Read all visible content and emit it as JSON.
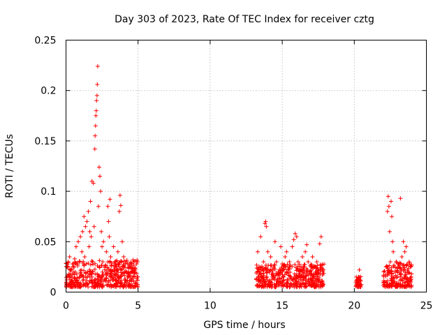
{
  "chart_data": {
    "type": "scatter",
    "title": "Day 303 of 2023, Rate Of TEC Index for receiver cztg",
    "xlabel": "GPS time / hours",
    "ylabel": "ROTI / TECUs",
    "xlim": [
      0,
      25
    ],
    "ylim": [
      0,
      0.25
    ],
    "xticks": [
      0,
      5,
      10,
      15,
      20,
      25
    ],
    "yticks": [
      0,
      0.05,
      0.1,
      0.15,
      0.2,
      0.25
    ],
    "xtick_labels": [
      "0",
      "5",
      "10",
      "15",
      "20",
      "25"
    ],
    "ytick_labels": [
      "0",
      "0.05",
      "0.1",
      "0.15",
      "0.2",
      "0.25"
    ],
    "grid": true,
    "marker": "+",
    "series": [
      {
        "color": "#ff0000",
        "points": [
          [
            0.05,
            0.012
          ],
          [
            0.1,
            0.025
          ],
          [
            0.15,
            0.03
          ],
          [
            0.2,
            0.018
          ],
          [
            0.25,
            0.035
          ],
          [
            0.3,
            0.008
          ],
          [
            0.35,
            0.022
          ],
          [
            0.4,
            0.015
          ],
          [
            0.45,
            0.028
          ],
          [
            0.5,
            0.01
          ],
          [
            0.55,
            0.02
          ],
          [
            0.6,
            0.033
          ],
          [
            0.65,
            0.012
          ],
          [
            0.7,
            0.045
          ],
          [
            0.75,
            0.018
          ],
          [
            0.8,
            0.026
          ],
          [
            0.85,
            0.05
          ],
          [
            0.9,
            0.014
          ],
          [
            0.95,
            0.03
          ],
          [
            1.0,
            0.055
          ],
          [
            1.05,
            0.022
          ],
          [
            1.1,
            0.04
          ],
          [
            1.15,
            0.06
          ],
          [
            1.2,
            0.016
          ],
          [
            1.25,
            0.075
          ],
          [
            1.3,
            0.035
          ],
          [
            1.35,
            0.065
          ],
          [
            1.4,
            0.028
          ],
          [
            1.45,
            0.07
          ],
          [
            1.5,
            0.02
          ],
          [
            1.55,
            0.08
          ],
          [
            1.6,
            0.045
          ],
          [
            1.65,
            0.06
          ],
          [
            1.7,
            0.09
          ],
          [
            1.75,
            0.055
          ],
          [
            1.8,
            0.11
          ],
          [
            1.85,
            0.03
          ],
          [
            1.9,
            0.108
          ],
          [
            1.95,
            0.065
          ],
          [
            2.0,
            0.142
          ],
          [
            2.02,
            0.155
          ],
          [
            2.05,
            0.165
          ],
          [
            2.07,
            0.175
          ],
          [
            2.1,
            0.18
          ],
          [
            2.12,
            0.19
          ],
          [
            2.15,
            0.195
          ],
          [
            2.17,
            0.206
          ],
          [
            2.2,
            0.224
          ],
          [
            2.25,
            0.085
          ],
          [
            2.3,
            0.124
          ],
          [
            2.35,
            0.115
          ],
          [
            2.4,
            0.1
          ],
          [
            2.45,
            0.06
          ],
          [
            2.5,
            0.045
          ],
          [
            2.55,
            0.03
          ],
          [
            2.6,
            0.05
          ],
          [
            2.7,
            0.025
          ],
          [
            2.8,
            0.04
          ],
          [
            2.9,
            0.085
          ],
          [
            2.95,
            0.07
          ],
          [
            3.0,
            0.055
          ],
          [
            3.05,
            0.092
          ],
          [
            3.1,
            0.035
          ],
          [
            3.2,
            0.02
          ],
          [
            3.3,
            0.045
          ],
          [
            3.4,
            0.03
          ],
          [
            3.5,
            0.025
          ],
          [
            3.6,
            0.04
          ],
          [
            3.7,
            0.08
          ],
          [
            3.75,
            0.096
          ],
          [
            3.8,
            0.086
          ],
          [
            3.9,
            0.05
          ],
          [
            4.0,
            0.035
          ],
          [
            4.1,
            0.02
          ],
          [
            4.2,
            0.03
          ],
          [
            4.3,
            0.015
          ],
          [
            4.4,
            0.025
          ],
          [
            4.5,
            0.012
          ],
          [
            4.6,
            0.02
          ],
          [
            4.7,
            0.03
          ],
          [
            4.8,
            0.022
          ],
          [
            4.9,
            0.028
          ],
          [
            4.95,
            0.015
          ],
          [
            13.3,
            0.04
          ],
          [
            13.4,
            0.025
          ],
          [
            13.5,
            0.055
          ],
          [
            13.6,
            0.015
          ],
          [
            13.7,
            0.03
          ],
          [
            13.8,
            0.068
          ],
          [
            13.85,
            0.07
          ],
          [
            13.9,
            0.065
          ],
          [
            14.0,
            0.04
          ],
          [
            14.1,
            0.02
          ],
          [
            14.2,
            0.035
          ],
          [
            14.3,
            0.015
          ],
          [
            14.4,
            0.025
          ],
          [
            14.5,
            0.05
          ],
          [
            14.6,
            0.03
          ],
          [
            14.7,
            0.018
          ],
          [
            14.8,
            0.022
          ],
          [
            14.9,
            0.045
          ],
          [
            15.0,
            0.028
          ],
          [
            15.1,
            0.012
          ],
          [
            15.2,
            0.035
          ],
          [
            15.3,
            0.04
          ],
          [
            15.4,
            0.02
          ],
          [
            15.5,
            0.03
          ],
          [
            15.6,
            0.015
          ],
          [
            15.7,
            0.045
          ],
          [
            15.8,
            0.052
          ],
          [
            15.9,
            0.058
          ],
          [
            16.0,
            0.055
          ],
          [
            16.1,
            0.03
          ],
          [
            16.2,
            0.02
          ],
          [
            16.3,
            0.025
          ],
          [
            16.4,
            0.035
          ],
          [
            16.5,
            0.015
          ],
          [
            16.6,
            0.04
          ],
          [
            16.7,
            0.047
          ],
          [
            16.8,
            0.03
          ],
          [
            16.9,
            0.02
          ],
          [
            17.0,
            0.025
          ],
          [
            17.1,
            0.035
          ],
          [
            17.2,
            0.015
          ],
          [
            17.3,
            0.02
          ],
          [
            17.4,
            0.03
          ],
          [
            17.5,
            0.012
          ],
          [
            17.6,
            0.048
          ],
          [
            17.7,
            0.055
          ],
          [
            17.8,
            0.02
          ],
          [
            20.2,
            0.008
          ],
          [
            20.3,
            0.015
          ],
          [
            20.35,
            0.022
          ],
          [
            20.4,
            0.012
          ],
          [
            22.1,
            0.01
          ],
          [
            22.2,
            0.025
          ],
          [
            22.3,
            0.08
          ],
          [
            22.35,
            0.095
          ],
          [
            22.4,
            0.085
          ],
          [
            22.45,
            0.06
          ],
          [
            22.5,
            0.03
          ],
          [
            22.55,
            0.09
          ],
          [
            22.6,
            0.075
          ],
          [
            22.65,
            0.05
          ],
          [
            22.7,
            0.04
          ],
          [
            22.8,
            0.02
          ],
          [
            22.9,
            0.03
          ],
          [
            23.0,
            0.015
          ],
          [
            23.1,
            0.025
          ],
          [
            23.2,
            0.093
          ],
          [
            23.3,
            0.035
          ],
          [
            23.4,
            0.05
          ],
          [
            23.5,
            0.04
          ],
          [
            23.6,
            0.045
          ],
          [
            23.7,
            0.02
          ],
          [
            23.8,
            0.03
          ],
          [
            23.9,
            0.025
          ],
          [
            23.95,
            0.015
          ]
        ],
        "bands": [
          [
            0.0,
            5.0,
            0.005,
            0.032
          ],
          [
            13.2,
            17.9,
            0.005,
            0.028
          ],
          [
            20.1,
            20.5,
            0.005,
            0.016
          ],
          [
            22.0,
            24.0,
            0.005,
            0.03
          ]
        ]
      }
    ]
  }
}
